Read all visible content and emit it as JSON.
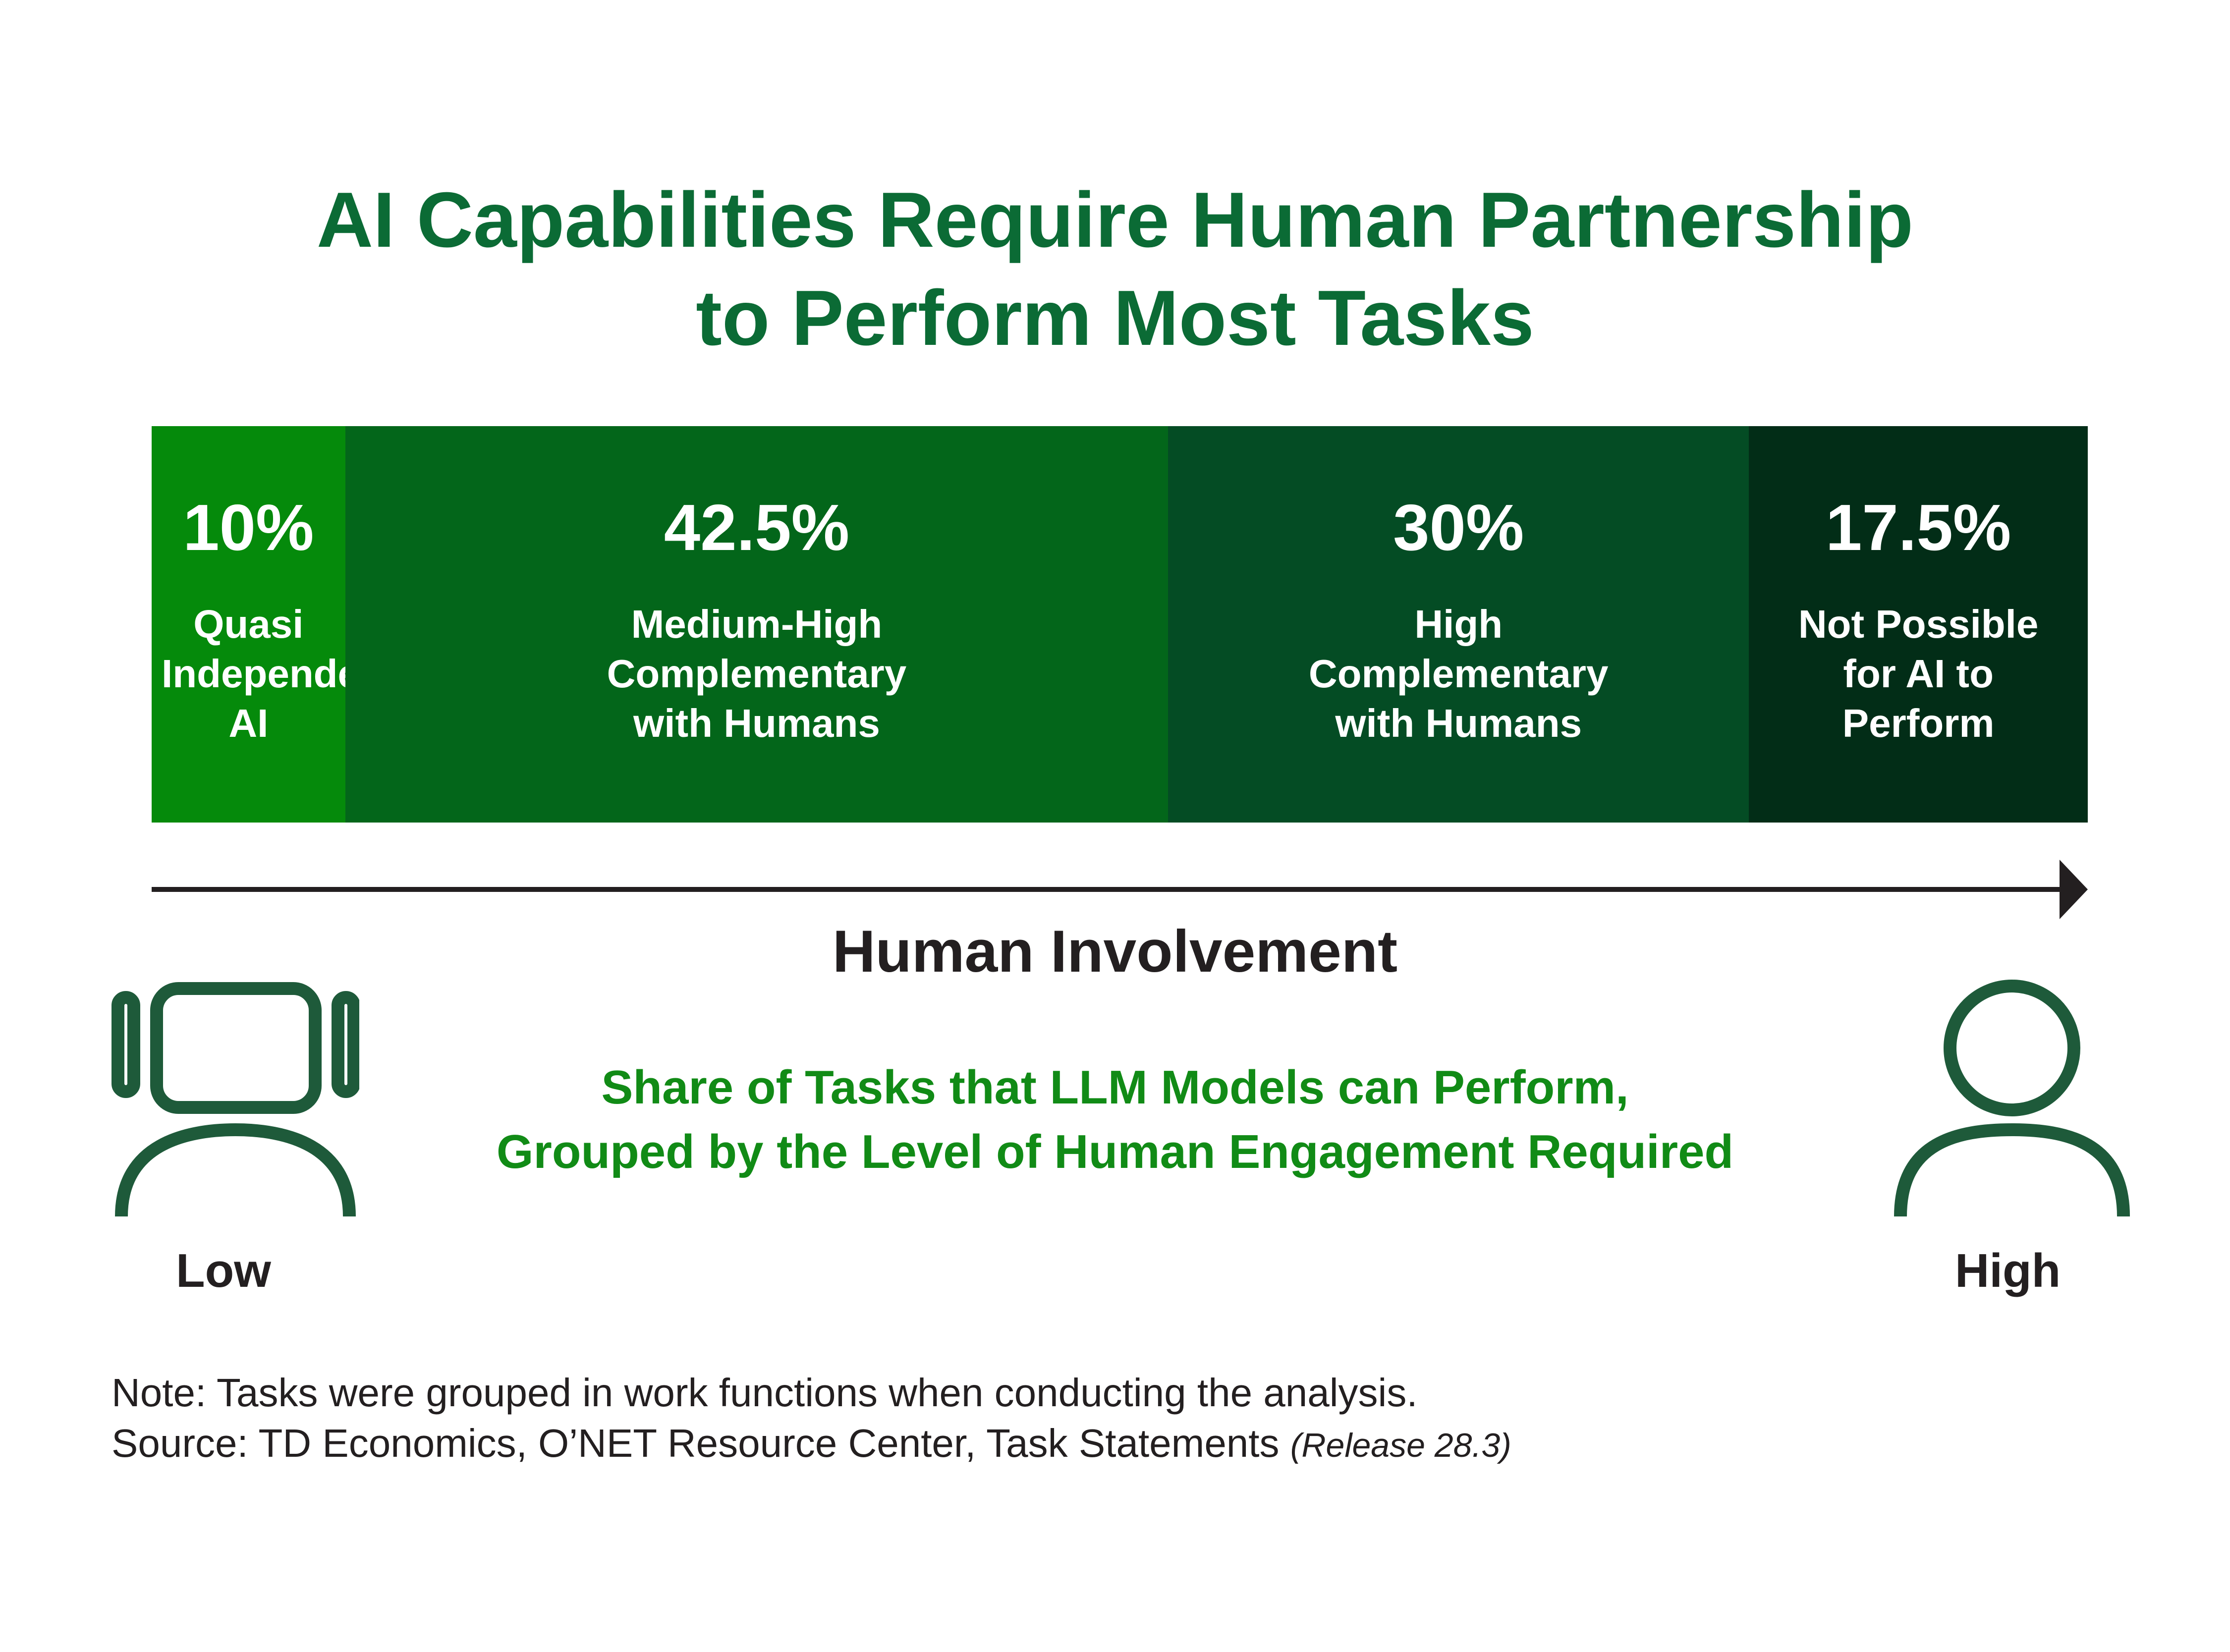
{
  "title": {
    "line1": "AI Capabilities Require Human Partnership",
    "line2": "to Perform Most Tasks"
  },
  "colors": {
    "title": "#0b6b35",
    "subtitle": "#118b16",
    "segments": [
      "#058a0b",
      "#03661a",
      "#044c24",
      "#022d17"
    ],
    "icon_stroke": "#1e5a3a",
    "axis": "#231f20"
  },
  "chart_data": {
    "type": "bar",
    "orientation": "horizontal-stacked-100",
    "categories": [
      "Quasi Independent AI",
      "Medium-High Complementary with Humans",
      "High Complementary with Humans",
      "Not Possible for AI to Perform"
    ],
    "values": [
      10,
      42.5,
      30,
      17.5
    ],
    "unit": "%",
    "value_labels": [
      "10%",
      "42.5%",
      "30%",
      "17.5%"
    ],
    "segment_labels": [
      "Quasi\nIndependent\nAI",
      "Medium-High\nComplementary\nwith Humans",
      "High\nComplementary\nwith Humans",
      "Not Possible\nfor AI to\nPerform"
    ],
    "title": "AI Capabilities Require Human Partnership to Perform Most Tasks",
    "subtitle": "Share of Tasks that LLM Models can Perform, Grouped by the Level of Human Engagement Required",
    "xlabel": "Human Involvement",
    "x_low_label": "Low",
    "x_high_label": "High",
    "xlim": [
      0,
      100
    ],
    "grid": false,
    "legend": "none"
  },
  "axis": {
    "label": "Human Involvement",
    "low": "Low",
    "high": "High"
  },
  "icons": {
    "low": "robot-icon",
    "high": "person-icon"
  },
  "subtitle": {
    "line1": "Share of Tasks that LLM Models can Perform,",
    "line2": "Grouped by the Level of Human Engagement Required"
  },
  "notes": {
    "note": "Note: Tasks were grouped in work functions when conducting the analysis.",
    "source": "Source: TD Economics, O’NET Resource Center, Task Statements",
    "release": "(Release 28.3)"
  }
}
